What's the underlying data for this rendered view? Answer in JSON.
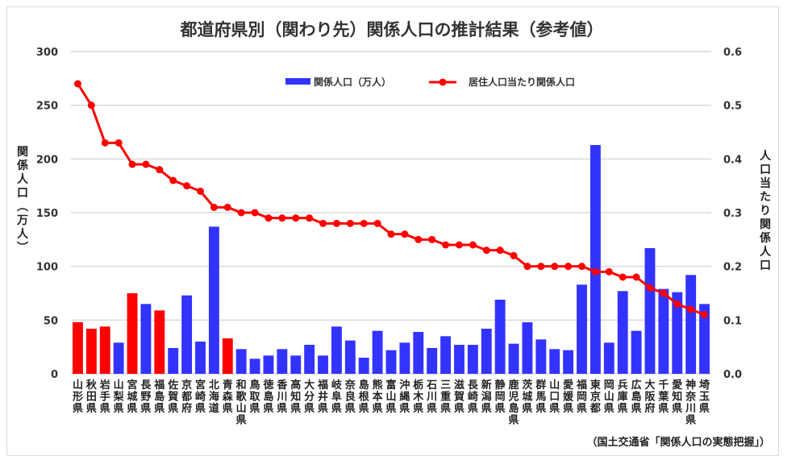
{
  "chart_data": {
    "type": "bar+line",
    "title": "都道府県別（関わり先）関係人口の推計結果（参考値）",
    "ylabel": "関係人口（万人）",
    "y2label": "人口当たり関係人口",
    "ylim": [
      0,
      300
    ],
    "y2lim": [
      0,
      0.6
    ],
    "yticks": [
      "0",
      "50",
      "100",
      "150",
      "200",
      "250",
      "300"
    ],
    "y2ticks": [
      "0.0",
      "0.1",
      "0.2",
      "0.3",
      "0.4",
      "0.5",
      "0.6"
    ],
    "grid": true,
    "legend_position": "top-center",
    "categories": [
      "山形県",
      "秋田県",
      "岩手県",
      "山梨県",
      "宮城県",
      "長野県",
      "福島県",
      "佐賀県",
      "京都府",
      "宮崎県",
      "北海道",
      "青森県",
      "和歌山県",
      "鳥取県",
      "徳島県",
      "香川県",
      "高知県",
      "大分県",
      "福井県",
      "岐阜県",
      "奈良県",
      "島根県",
      "熊本県",
      "富山県",
      "沖縄県",
      "栃木県",
      "石川県",
      "三重県",
      "滋賀県",
      "長崎県",
      "新潟県",
      "静岡県",
      "鹿児島県",
      "茨城県",
      "群馬県",
      "山口県",
      "愛媛県",
      "福岡県",
      "東京都",
      "岡山県",
      "兵庫県",
      "広島県",
      "大阪府",
      "千葉県",
      "愛知県",
      "神奈川県",
      "埼玉県"
    ],
    "series": [
      {
        "name": "関係人口（万人）",
        "type": "bar",
        "axis": "left",
        "values": [
          48,
          42,
          44,
          29,
          75,
          65,
          59,
          24,
          73,
          30,
          137,
          33,
          23,
          14,
          17,
          23,
          17,
          27,
          17,
          44,
          31,
          15,
          40,
          22,
          29,
          39,
          24,
          35,
          27,
          27,
          42,
          69,
          28,
          48,
          32,
          23,
          22,
          83,
          213,
          29,
          77,
          40,
          117,
          79,
          76,
          92,
          65
        ],
        "highlight": [
          true,
          true,
          true,
          false,
          true,
          false,
          true,
          false,
          false,
          false,
          false,
          true,
          false,
          false,
          false,
          false,
          false,
          false,
          false,
          false,
          false,
          false,
          false,
          false,
          false,
          false,
          false,
          false,
          false,
          false,
          false,
          false,
          false,
          false,
          false,
          false,
          false,
          false,
          false,
          false,
          false,
          false,
          false,
          false,
          false,
          false,
          false
        ]
      },
      {
        "name": "居住人口当たり関係人口",
        "type": "line",
        "axis": "right",
        "values": [
          0.54,
          0.5,
          0.43,
          0.43,
          0.39,
          0.39,
          0.38,
          0.36,
          0.35,
          0.34,
          0.31,
          0.31,
          0.3,
          0.3,
          0.29,
          0.29,
          0.29,
          0.29,
          0.28,
          0.28,
          0.28,
          0.28,
          0.28,
          0.26,
          0.26,
          0.25,
          0.25,
          0.24,
          0.24,
          0.24,
          0.23,
          0.23,
          0.22,
          0.2,
          0.2,
          0.2,
          0.2,
          0.2,
          0.19,
          0.19,
          0.18,
          0.18,
          0.16,
          0.15,
          0.13,
          0.12,
          0.11
        ]
      }
    ],
    "colors": {
      "bar": "#3333ff",
      "bar_highlight": "#ff0000",
      "line": "#ff0000",
      "grid": "#d9d9d9"
    },
    "source": "（国土交通省「関係人口の実態把握」）"
  }
}
